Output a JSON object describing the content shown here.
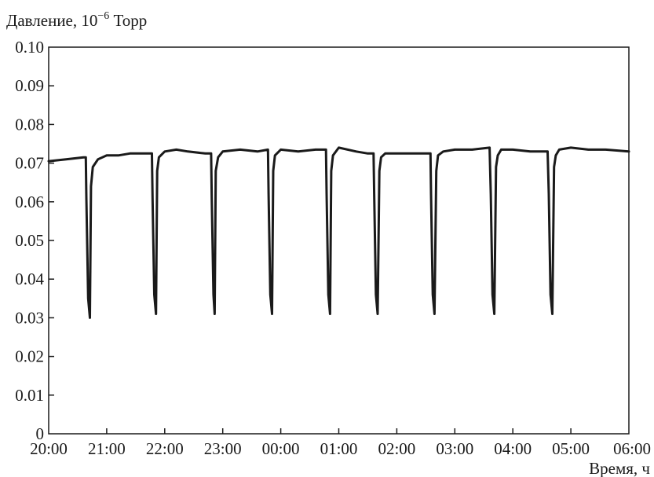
{
  "chart_data": {
    "type": "line",
    "ylabel": "Давление, 10",
    "ylabel_exponent": "−6",
    "ylabel_unit": " Торр",
    "xlabel": "Время, ч",
    "ylim": [
      0,
      0.1
    ],
    "xlim": [
      0,
      10
    ],
    "y_ticks": [
      "0",
      "0.01",
      "0.02",
      "0.03",
      "0.04",
      "0.05",
      "0.06",
      "0.07",
      "0.08",
      "0.09",
      "0.10"
    ],
    "x_ticks": [
      "20:00",
      "21:00",
      "22:00",
      "23:00",
      "00:00",
      "01:00",
      "02:00",
      "03:00",
      "04:00",
      "05:00",
      "06:00"
    ],
    "grid": false,
    "line_color": "#1a1a1a",
    "series": [
      {
        "x": [
          0.0,
          0.3,
          0.6,
          0.64,
          0.65,
          0.68,
          0.71,
          0.73,
          0.76,
          0.85,
          1.0,
          1.2,
          1.4,
          1.6,
          1.78,
          1.79,
          1.82,
          1.85,
          1.87,
          1.9,
          2.0,
          2.2,
          2.4,
          2.7,
          2.8,
          2.81,
          2.84,
          2.86,
          2.88,
          2.92,
          3.0,
          3.3,
          3.6,
          3.78,
          3.79,
          3.82,
          3.85,
          3.87,
          3.9,
          4.0,
          4.3,
          4.6,
          4.78,
          4.79,
          4.82,
          4.85,
          4.87,
          4.9,
          5.0,
          5.3,
          5.5,
          5.6,
          5.61,
          5.64,
          5.67,
          5.7,
          5.73,
          5.8,
          6.0,
          6.3,
          6.58,
          6.59,
          6.62,
          6.65,
          6.68,
          6.71,
          6.8,
          7.0,
          7.3,
          7.6,
          7.62,
          7.65,
          7.68,
          7.71,
          7.74,
          7.8,
          8.0,
          8.3,
          8.6,
          8.62,
          8.65,
          8.68,
          8.71,
          8.74,
          8.8,
          9.0,
          9.3,
          9.6,
          10.0
        ],
        "y": [
          0.0705,
          0.071,
          0.0715,
          0.0715,
          0.061,
          0.035,
          0.03,
          0.064,
          0.069,
          0.071,
          0.072,
          0.072,
          0.0725,
          0.0725,
          0.0725,
          0.061,
          0.036,
          0.031,
          0.068,
          0.0715,
          0.073,
          0.0735,
          0.073,
          0.0725,
          0.0725,
          0.061,
          0.036,
          0.031,
          0.068,
          0.0715,
          0.073,
          0.0735,
          0.073,
          0.0735,
          0.062,
          0.036,
          0.031,
          0.068,
          0.072,
          0.0735,
          0.073,
          0.0735,
          0.0735,
          0.062,
          0.036,
          0.031,
          0.068,
          0.072,
          0.074,
          0.073,
          0.0725,
          0.0725,
          0.062,
          0.036,
          0.031,
          0.068,
          0.0715,
          0.0725,
          0.0725,
          0.0725,
          0.0725,
          0.062,
          0.036,
          0.031,
          0.068,
          0.072,
          0.073,
          0.0735,
          0.0735,
          0.074,
          0.062,
          0.036,
          0.031,
          0.069,
          0.072,
          0.0735,
          0.0735,
          0.073,
          0.073,
          0.062,
          0.036,
          0.031,
          0.069,
          0.072,
          0.0735,
          0.074,
          0.0735,
          0.0735,
          0.073
        ]
      }
    ]
  }
}
